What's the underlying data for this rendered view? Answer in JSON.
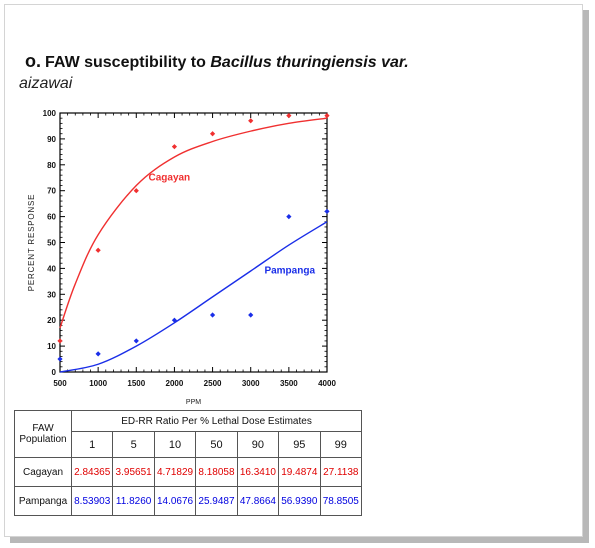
{
  "slide": {
    "bullet": "o.",
    "title_prefix": "FAW susceptibility to ",
    "title_italic": "Bacillus thuringiensis var.",
    "title_line2": "aizawai"
  },
  "colors": {
    "cagayan": "#f03030",
    "pampanga": "#1a2ee8",
    "axis": "#000000"
  },
  "chart_data": {
    "type": "scatter",
    "title": "",
    "xlabel": "PPM",
    "ylabel": "PERCENT RESPONSE",
    "xlim": [
      500,
      4000
    ],
    "ylim": [
      0,
      100
    ],
    "x_ticks": [
      500,
      1000,
      1500,
      2000,
      2500,
      3000,
      3500,
      4000
    ],
    "y_ticks": [
      0,
      10,
      20,
      30,
      40,
      50,
      60,
      70,
      80,
      90,
      100
    ],
    "grid": false,
    "series": [
      {
        "name": "Cagayan",
        "color": "#f03030",
        "points": [
          [
            500,
            12
          ],
          [
            1000,
            47
          ],
          [
            1500,
            70
          ],
          [
            2000,
            87
          ],
          [
            2500,
            92
          ],
          [
            3000,
            97
          ],
          [
            3500,
            99
          ],
          [
            4000,
            99
          ]
        ],
        "fit": [
          [
            500,
            17
          ],
          [
            700,
            34
          ],
          [
            1000,
            53
          ],
          [
            1500,
            72
          ],
          [
            2000,
            83
          ],
          [
            2500,
            89
          ],
          [
            3000,
            93
          ],
          [
            3500,
            96
          ],
          [
            4000,
            98
          ]
        ]
      },
      {
        "name": "Pampanga",
        "color": "#1a2ee8",
        "points": [
          [
            500,
            5
          ],
          [
            1000,
            7
          ],
          [
            1500,
            12
          ],
          [
            2000,
            20
          ],
          [
            2500,
            22
          ],
          [
            3000,
            22
          ],
          [
            3500,
            60
          ],
          [
            4000,
            62
          ]
        ],
        "fit": [
          [
            500,
            0
          ],
          [
            1000,
            3
          ],
          [
            1500,
            10
          ],
          [
            2000,
            19
          ],
          [
            2500,
            29
          ],
          [
            3000,
            39
          ],
          [
            3500,
            49
          ],
          [
            4000,
            58
          ]
        ]
      }
    ]
  },
  "table": {
    "pop_header": "FAW Population",
    "group_header": "ED-RR  Ratio Per % Lethal Dose Estimates",
    "columns": [
      "1",
      "5",
      "10",
      "50",
      "90",
      "95",
      "99"
    ],
    "rows": [
      {
        "population": "Cagayan",
        "values": [
          "2.84365",
          "3.95651",
          "4.71829",
          "8.18058",
          "16.3410",
          "19.4874",
          "27.1138"
        ]
      },
      {
        "population": "Pampanga",
        "values": [
          "8.53903",
          "11.8260",
          "14.0676",
          "25.9487",
          "47.8664",
          "56.9390",
          "78.8505"
        ]
      }
    ]
  }
}
